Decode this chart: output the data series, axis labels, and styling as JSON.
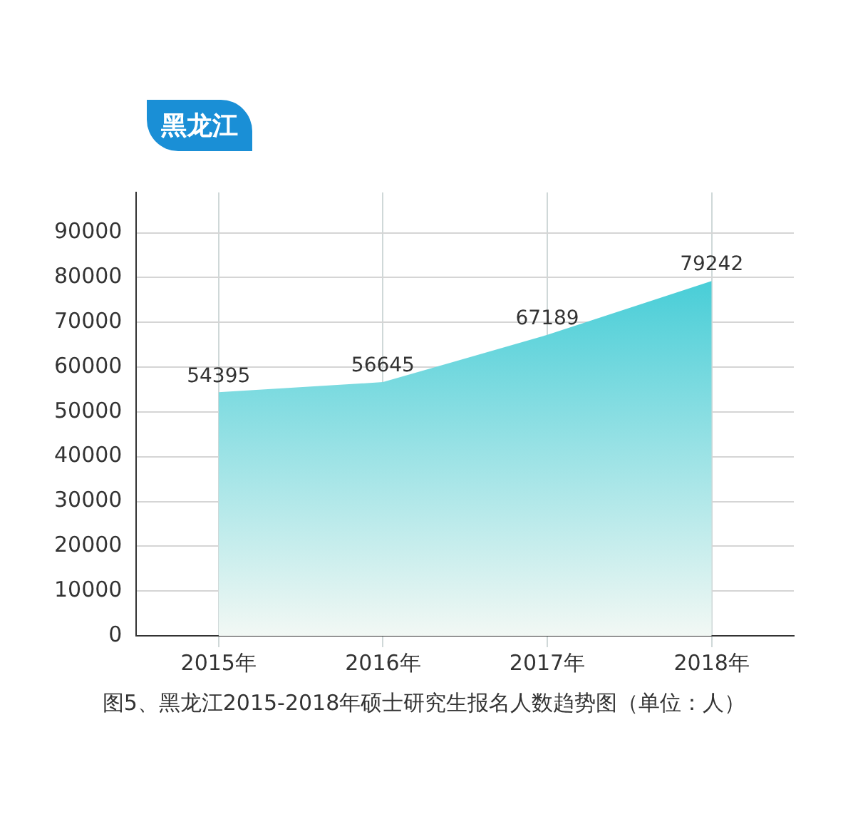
{
  "chart_data": {
    "type": "area",
    "title": "黑龙江",
    "annotations": [
      "图5、黑龙江2015-2018年硕士研究生报名人数趋势图（单位：人）"
    ],
    "categories": [
      "2015年",
      "2016年",
      "2017年",
      "2018年"
    ],
    "series": [
      {
        "color": "#1ec3d0",
        "values": [
          54395,
          56645,
          67189,
          79242
        ]
      }
    ],
    "ylim": [
      0,
      99000
    ],
    "yticks": [
      0,
      10000,
      20000,
      30000,
      40000,
      50000,
      60000,
      70000,
      80000,
      90000
    ],
    "grid": true,
    "data_labels": true,
    "legend": false
  }
}
